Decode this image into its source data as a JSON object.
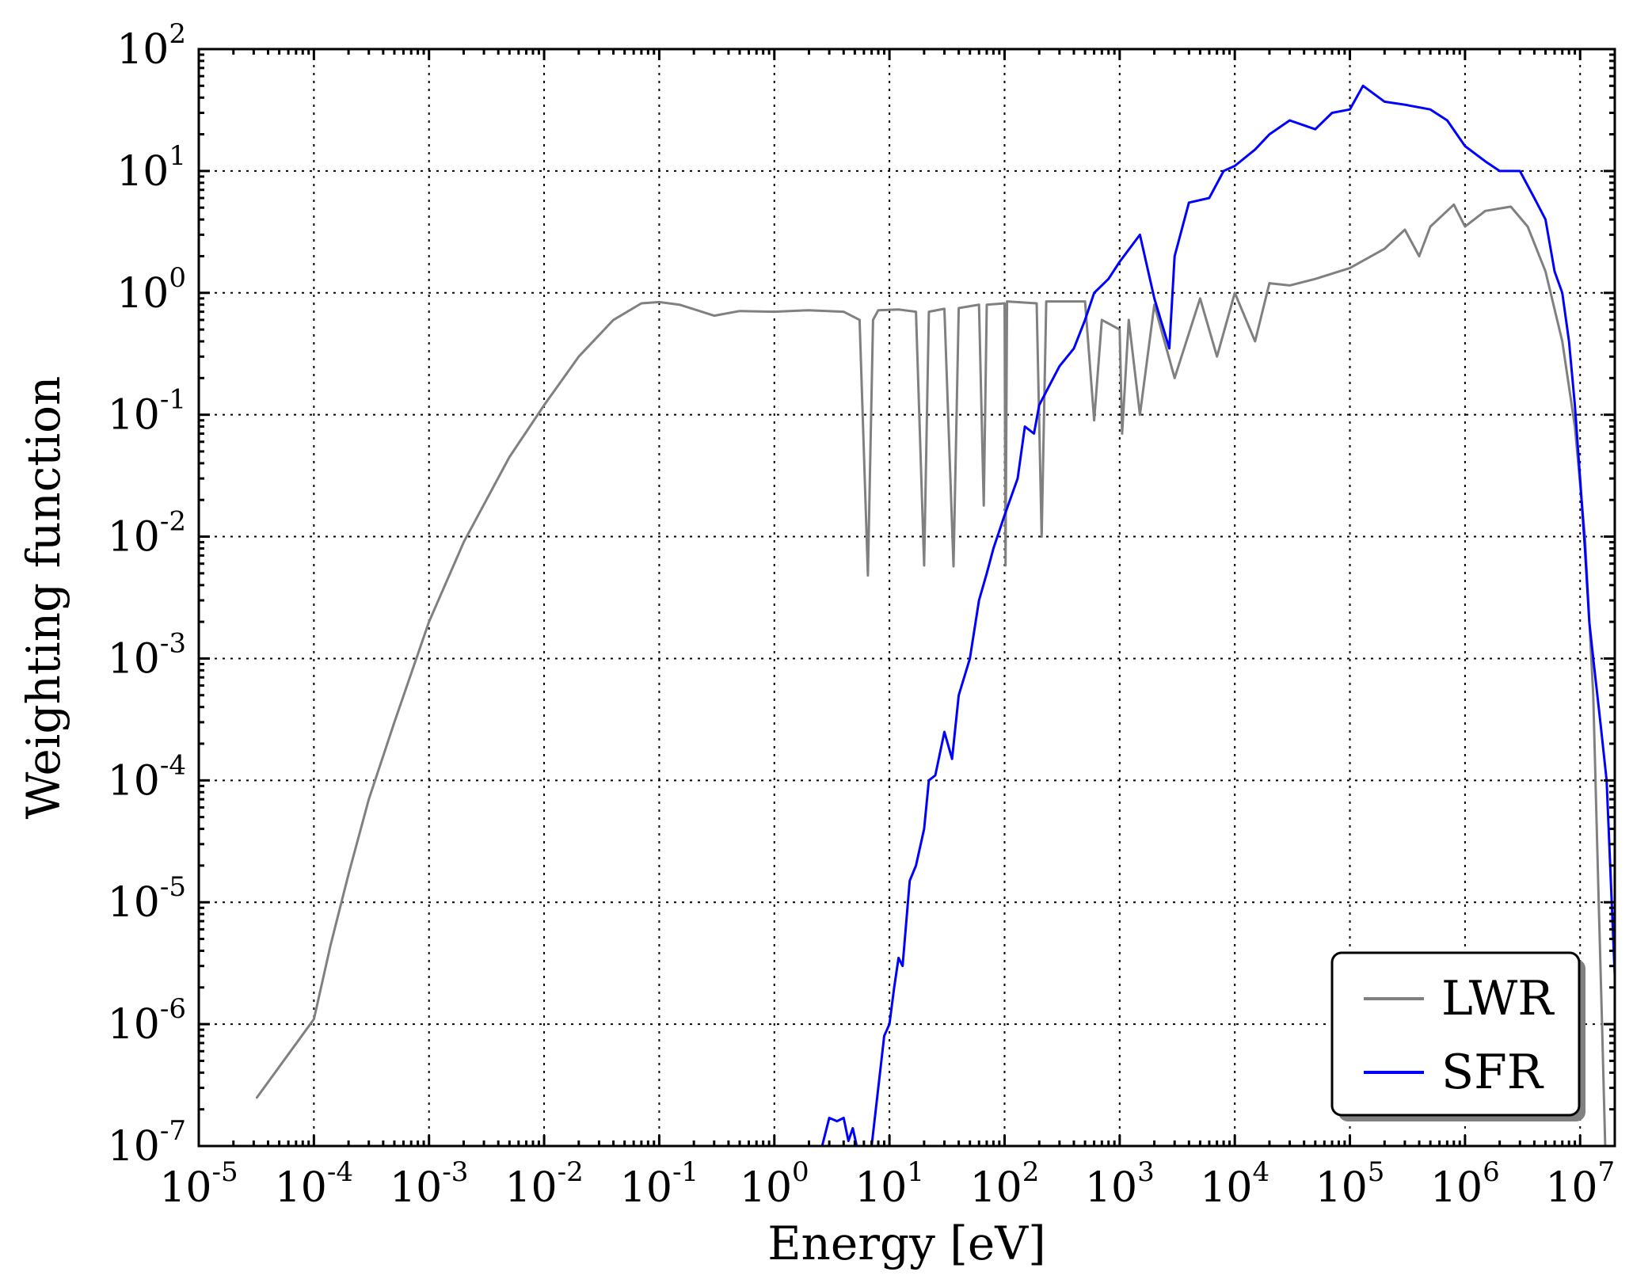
{
  "chart_data": {
    "type": "line",
    "xlabel": "Energy [eV]",
    "ylabel": "Weighting function",
    "xscale": "log",
    "yscale": "log",
    "xlim": [
      1e-05,
      20000000
    ],
    "ylim": [
      1e-07,
      100
    ],
    "grid": true,
    "legend_position": "lower-right",
    "x_ticks": [
      {
        "base": "10",
        "exp": "-5",
        "value": 1e-05
      },
      {
        "base": "10",
        "exp": "-4",
        "value": 0.0001
      },
      {
        "base": "10",
        "exp": "-3",
        "value": 0.001
      },
      {
        "base": "10",
        "exp": "-2",
        "value": 0.01
      },
      {
        "base": "10",
        "exp": "-1",
        "value": 0.1
      },
      {
        "base": "10",
        "exp": "0",
        "value": 1
      },
      {
        "base": "10",
        "exp": "1",
        "value": 10
      },
      {
        "base": "10",
        "exp": "2",
        "value": 100
      },
      {
        "base": "10",
        "exp": "3",
        "value": 1000
      },
      {
        "base": "10",
        "exp": "4",
        "value": 10000
      },
      {
        "base": "10",
        "exp": "5",
        "value": 100000
      },
      {
        "base": "10",
        "exp": "6",
        "value": 1000000
      },
      {
        "base": "10",
        "exp": "7",
        "value": 10000000
      }
    ],
    "y_ticks": [
      {
        "base": "10",
        "exp": "2",
        "value": 100
      },
      {
        "base": "10",
        "exp": "1",
        "value": 10
      },
      {
        "base": "10",
        "exp": "0",
        "value": 1
      },
      {
        "base": "10",
        "exp": "-1",
        "value": 0.1
      },
      {
        "base": "10",
        "exp": "-2",
        "value": 0.01
      },
      {
        "base": "10",
        "exp": "-3",
        "value": 0.001
      },
      {
        "base": "10",
        "exp": "-4",
        "value": 0.0001
      },
      {
        "base": "10",
        "exp": "-5",
        "value": 1e-05
      },
      {
        "base": "10",
        "exp": "-6",
        "value": 1e-06
      },
      {
        "base": "10",
        "exp": "-7",
        "value": 1e-07
      }
    ],
    "series": [
      {
        "name": "LWR",
        "color": "#808080",
        "points": [
          [
            3.2e-05,
            2.5e-07
          ],
          [
            0.0001,
            1.1e-06
          ],
          [
            0.00014,
            4.5e-06
          ],
          [
            0.0002,
            1.7e-05
          ],
          [
            0.0003,
            7e-05
          ],
          [
            0.0005,
            0.0003
          ],
          [
            0.001,
            0.002
          ],
          [
            0.002,
            0.009
          ],
          [
            0.005,
            0.045
          ],
          [
            0.01,
            0.12
          ],
          [
            0.02,
            0.3
          ],
          [
            0.04,
            0.6
          ],
          [
            0.07,
            0.82
          ],
          [
            0.1,
            0.84
          ],
          [
            0.15,
            0.8
          ],
          [
            0.3,
            0.65
          ],
          [
            0.5,
            0.71
          ],
          [
            1,
            0.7
          ],
          [
            2,
            0.72
          ],
          [
            4,
            0.7
          ],
          [
            5.5,
            0.6
          ],
          [
            6.5,
            0.0048
          ],
          [
            7.2,
            0.6
          ],
          [
            8,
            0.72
          ],
          [
            12,
            0.73
          ],
          [
            17,
            0.7
          ],
          [
            20,
            0.0058
          ],
          [
            22,
            0.7
          ],
          [
            30,
            0.74
          ],
          [
            36,
            0.0057
          ],
          [
            40,
            0.75
          ],
          [
            60,
            0.8
          ],
          [
            66,
            0.018
          ],
          [
            70,
            0.8
          ],
          [
            100,
            0.82
          ],
          [
            102,
            0.0058
          ],
          [
            105,
            0.85
          ],
          [
            190,
            0.82
          ],
          [
            210,
            0.01
          ],
          [
            230,
            0.85
          ],
          [
            500,
            0.85
          ],
          [
            600,
            0.09
          ],
          [
            700,
            0.6
          ],
          [
            1000,
            0.5
          ],
          [
            1050,
            0.07
          ],
          [
            1200,
            0.6
          ],
          [
            1500,
            0.1
          ],
          [
            2000,
            0.8
          ],
          [
            3000,
            0.2
          ],
          [
            5000,
            0.9
          ],
          [
            7000,
            0.3
          ],
          [
            10000,
            1.0
          ],
          [
            15000,
            0.4
          ],
          [
            20000,
            1.2
          ],
          [
            30000,
            1.15
          ],
          [
            50000,
            1.3
          ],
          [
            100000,
            1.6
          ],
          [
            200000,
            2.3
          ],
          [
            300000,
            3.3
          ],
          [
            400000,
            2.0
          ],
          [
            500000,
            3.5
          ],
          [
            800000,
            5.3
          ],
          [
            1000000,
            3.5
          ],
          [
            1500000,
            4.7
          ],
          [
            2500000,
            5.1
          ],
          [
            3500000,
            3.5
          ],
          [
            5000000,
            1.5
          ],
          [
            7000000,
            0.4
          ],
          [
            9000000,
            0.08
          ],
          [
            11000000,
            0.01
          ],
          [
            13000000,
            0.0005
          ],
          [
            14500000,
            1e-05
          ],
          [
            15500000,
            1e-06
          ],
          [
            16500000,
            1e-07
          ]
        ]
      },
      {
        "name": "SFR",
        "color": "#0000ff",
        "points": [
          [
            2.6,
            1e-07
          ],
          [
            3,
            1.7e-07
          ],
          [
            3.5,
            1.6e-07
          ],
          [
            4,
            1.7e-07
          ],
          [
            4.4,
            1.1e-07
          ],
          [
            4.8,
            1.4e-07
          ],
          [
            5.2,
            1e-07
          ],
          [
            7,
            1e-07
          ],
          [
            8,
            3e-07
          ],
          [
            9,
            8e-07
          ],
          [
            10,
            1e-06
          ],
          [
            11,
            2e-06
          ],
          [
            12,
            3.5e-06
          ],
          [
            13,
            3e-06
          ],
          [
            15,
            1.5e-05
          ],
          [
            17,
            2e-05
          ],
          [
            20,
            4e-05
          ],
          [
            22,
            0.0001
          ],
          [
            25,
            0.00011
          ],
          [
            30,
            0.00025
          ],
          [
            35,
            0.00015
          ],
          [
            40,
            0.0005
          ],
          [
            50,
            0.001
          ],
          [
            60,
            0.003
          ],
          [
            70,
            0.005
          ],
          [
            80,
            0.008
          ],
          [
            100,
            0.015
          ],
          [
            130,
            0.03
          ],
          [
            150,
            0.08
          ],
          [
            180,
            0.07
          ],
          [
            200,
            0.12
          ],
          [
            300,
            0.25
          ],
          [
            400,
            0.35
          ],
          [
            500,
            0.6
          ],
          [
            600,
            1.0
          ],
          [
            800,
            1.3
          ],
          [
            1000,
            1.8
          ],
          [
            1500,
            3.0
          ],
          [
            2000,
            0.9
          ],
          [
            2700,
            0.35
          ],
          [
            3000,
            2.0
          ],
          [
            4000,
            5.5
          ],
          [
            6000,
            6.0
          ],
          [
            8000,
            10
          ],
          [
            10000,
            11
          ],
          [
            15000,
            15
          ],
          [
            20000,
            20
          ],
          [
            30000,
            26
          ],
          [
            50000,
            22
          ],
          [
            70000,
            30
          ],
          [
            100000,
            32
          ],
          [
            130000,
            50
          ],
          [
            200000,
            37
          ],
          [
            300000,
            35
          ],
          [
            500000,
            32
          ],
          [
            700000,
            26
          ],
          [
            1000000,
            16
          ],
          [
            1500000,
            12
          ],
          [
            2000000,
            10
          ],
          [
            3000000,
            10
          ],
          [
            4000000,
            6
          ],
          [
            5000000,
            4
          ],
          [
            6000000,
            1.5
          ],
          [
            7000000,
            1.0
          ],
          [
            8000000,
            0.4
          ],
          [
            9000000,
            0.12
          ],
          [
            10000000,
            0.03
          ],
          [
            11000000,
            0.008
          ],
          [
            12000000,
            0.002
          ],
          [
            13000000,
            0.001
          ],
          [
            15000000,
            0.0003
          ],
          [
            17000000,
            0.0001
          ],
          [
            20000000,
            2.5e-06
          ]
        ]
      }
    ]
  }
}
